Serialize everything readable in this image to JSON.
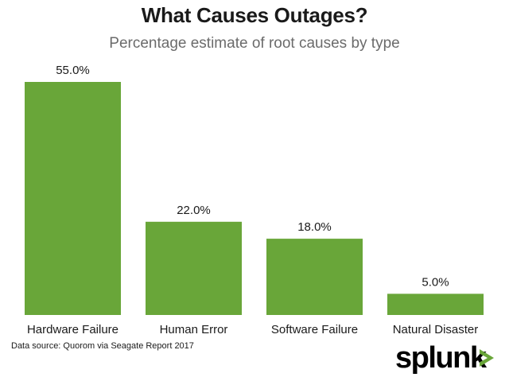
{
  "chart_data": {
    "type": "bar",
    "title": "What Causes Outages?",
    "subtitle": "Percentage estimate of root causes by type",
    "categories": [
      "Hardware Failure",
      "Human Error",
      "Software Failure",
      "Natural Disaster"
    ],
    "values": [
      55.0,
      22.0,
      18.0,
      5.0
    ],
    "value_labels": [
      "55.0%",
      "22.0%",
      "18.0%",
      "5.0%"
    ],
    "ylim": [
      0,
      55
    ],
    "grid": false,
    "legend": "none",
    "bar_color": "#69a639",
    "source": "Data source: Quorom via Seagate Report 2017"
  },
  "brand": {
    "logo_text": "splunk",
    "chevron_color": "#69a639"
  }
}
